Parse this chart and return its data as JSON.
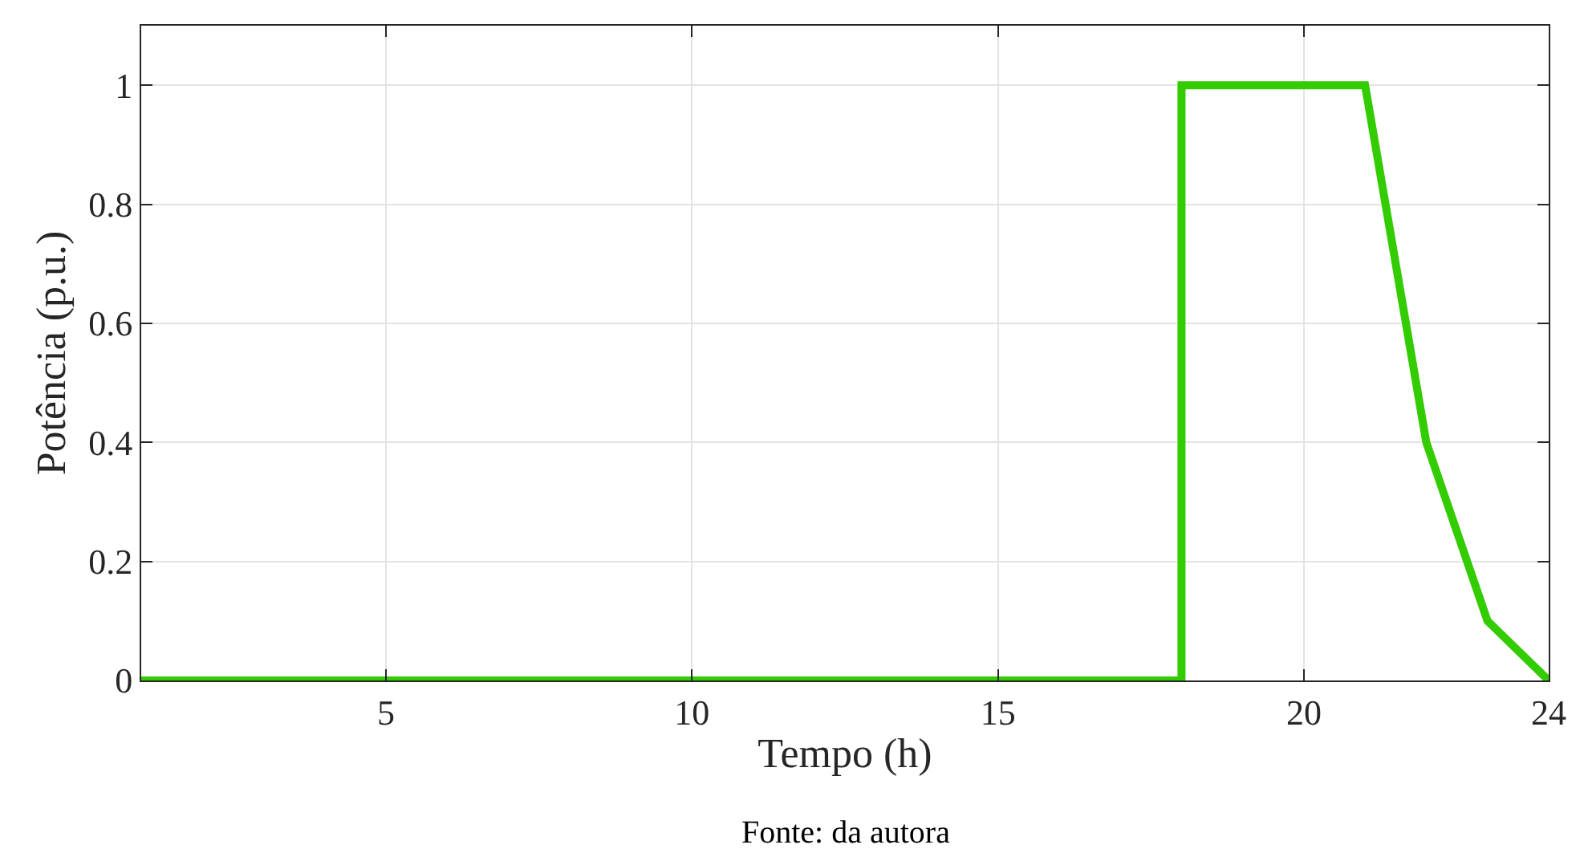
{
  "chart_data": {
    "type": "line",
    "xlabel": "Tempo (h)",
    "ylabel": "Potência (p.u.)",
    "annotations": [
      "Fonte: da autora"
    ],
    "x": [
      1,
      18,
      18,
      21,
      22,
      23,
      24
    ],
    "series": [
      {
        "color": "#33cc00",
        "values": [
          0,
          0,
          1,
          1,
          0.4,
          0.1,
          0
        ]
      }
    ],
    "xlim": [
      1,
      24
    ],
    "xticks": [
      5,
      10,
      15,
      20,
      24
    ],
    "ylim": [
      0,
      1.1
    ],
    "yticks": [
      0,
      0.2,
      0.4,
      0.6,
      0.8,
      1
    ],
    "grid": true,
    "marker": "none",
    "line_style": "solid"
  }
}
